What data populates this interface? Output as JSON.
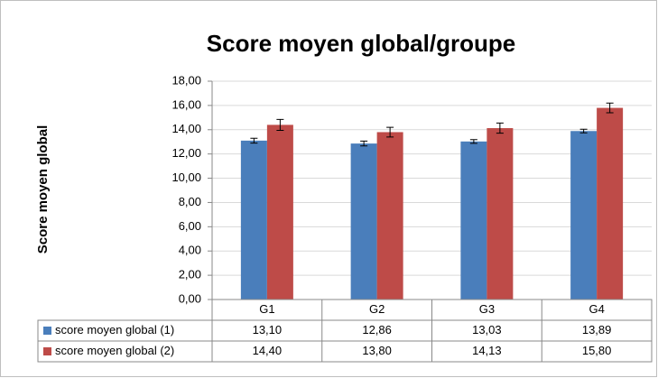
{
  "chart_data": {
    "type": "bar",
    "title": "Score moyen global/groupe",
    "y_label": "Score moyen global",
    "categories": [
      "G1",
      "G2",
      "G3",
      "G4"
    ],
    "series": [
      {
        "name": "score moyen global (1)",
        "color": "#4a7ebb",
        "values": [
          13.1,
          12.86,
          13.03,
          13.89
        ],
        "value_labels": [
          "13,10",
          "12,86",
          "13,03",
          "13,89"
        ],
        "errors": [
          0.2,
          0.2,
          0.15,
          0.15
        ]
      },
      {
        "name": "score moyen global (2)",
        "color": "#be4b48",
        "values": [
          14.4,
          13.8,
          14.13,
          15.8
        ],
        "value_labels": [
          "14,40",
          "13,80",
          "14,13",
          "15,80"
        ],
        "errors": [
          0.45,
          0.4,
          0.42,
          0.4
        ]
      }
    ],
    "ylim": [
      0,
      18
    ],
    "yticks": [
      {
        "value": 0,
        "label": "0,00"
      },
      {
        "value": 2,
        "label": "2,00"
      },
      {
        "value": 4,
        "label": "4,00"
      },
      {
        "value": 6,
        "label": "6,00"
      },
      {
        "value": 8,
        "label": "8,00"
      },
      {
        "value": 10,
        "label": "10,00"
      },
      {
        "value": 12,
        "label": "12,00"
      },
      {
        "value": 14,
        "label": "14,00"
      },
      {
        "value": 16,
        "label": "16,00"
      },
      {
        "value": 18,
        "label": "18,00"
      }
    ],
    "grid": true
  }
}
